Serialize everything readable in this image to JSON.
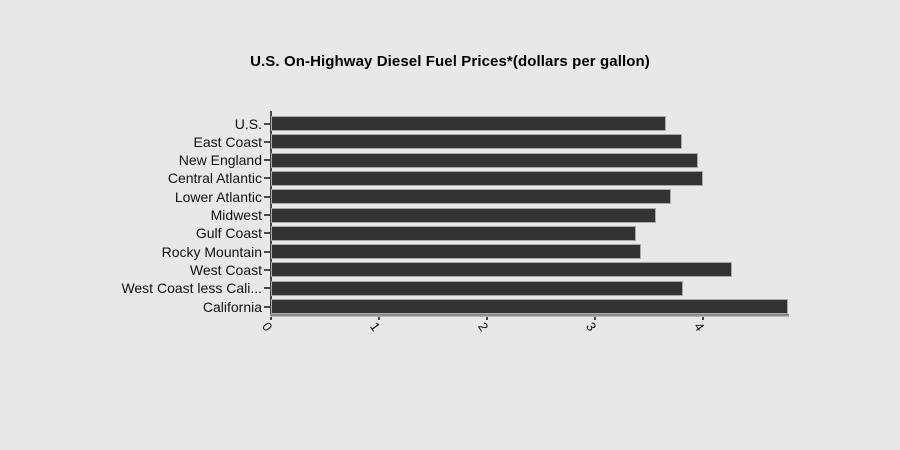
{
  "title": "U.S. On-Highway Diesel Fuel Prices*(dollars per gallon)",
  "chart_data": {
    "type": "bar",
    "orientation": "horizontal",
    "title": "U.S. On-Highway Diesel Fuel Prices*(dollars per gallon)",
    "xlabel": "",
    "ylabel": "",
    "categories": [
      "U.S.",
      "East Coast",
      "New England",
      "Central Atlantic",
      "Lower Atlantic",
      "Midwest",
      "Gulf Coast",
      "Rocky Mountain",
      "West Coast",
      "West Coast less Cali...",
      "California"
    ],
    "values": [
      3.66,
      3.81,
      3.96,
      4.0,
      3.71,
      3.57,
      3.38,
      3.43,
      4.27,
      3.82,
      4.79
    ],
    "xlim": [
      0,
      4.79
    ],
    "x_ticks": [
      0,
      1,
      2,
      3,
      4
    ],
    "x_tick_labels": [
      "0",
      "1",
      "2",
      "3",
      "4"
    ],
    "grid": false,
    "legend": null,
    "colors": {
      "bar": "#333333",
      "bar_border": "#a9a9a9",
      "background": "#e8e8e8",
      "axis": "#8c8c8c",
      "tick": "#474747",
      "text": "#111111",
      "title_text": "#000000"
    }
  }
}
